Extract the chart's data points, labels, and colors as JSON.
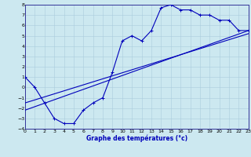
{
  "xlabel": "Graphe des températures (°c)",
  "xlim": [
    0,
    23
  ],
  "ylim": [
    -4,
    8
  ],
  "xticks": [
    0,
    1,
    2,
    3,
    4,
    5,
    6,
    7,
    8,
    9,
    10,
    11,
    12,
    13,
    14,
    15,
    16,
    17,
    18,
    19,
    20,
    21,
    22,
    23
  ],
  "yticks": [
    -4,
    -3,
    -2,
    -1,
    0,
    1,
    2,
    3,
    4,
    5,
    6,
    7,
    8
  ],
  "background_color": "#cce8f0",
  "grid_color": "#aaccdd",
  "line_color": "#0000bb",
  "curve_x": [
    0,
    1,
    2,
    3,
    4,
    5,
    6,
    7,
    8,
    9,
    10,
    11,
    12,
    13,
    14,
    15,
    16,
    17,
    18,
    19,
    20,
    21,
    22,
    23
  ],
  "curve_y": [
    1.0,
    0.0,
    -1.5,
    -3.0,
    -3.5,
    -3.5,
    -2.2,
    -1.5,
    -1.0,
    1.5,
    4.5,
    5.0,
    4.5,
    5.5,
    7.7,
    8.0,
    7.5,
    7.5,
    7.0,
    7.0,
    6.5,
    6.5,
    5.5,
    5.5
  ],
  "line1_x": [
    0,
    23
  ],
  "line1_y": [
    -2.2,
    5.5
  ],
  "line2_x": [
    0,
    23
  ],
  "line2_y": [
    -1.5,
    5.2
  ]
}
